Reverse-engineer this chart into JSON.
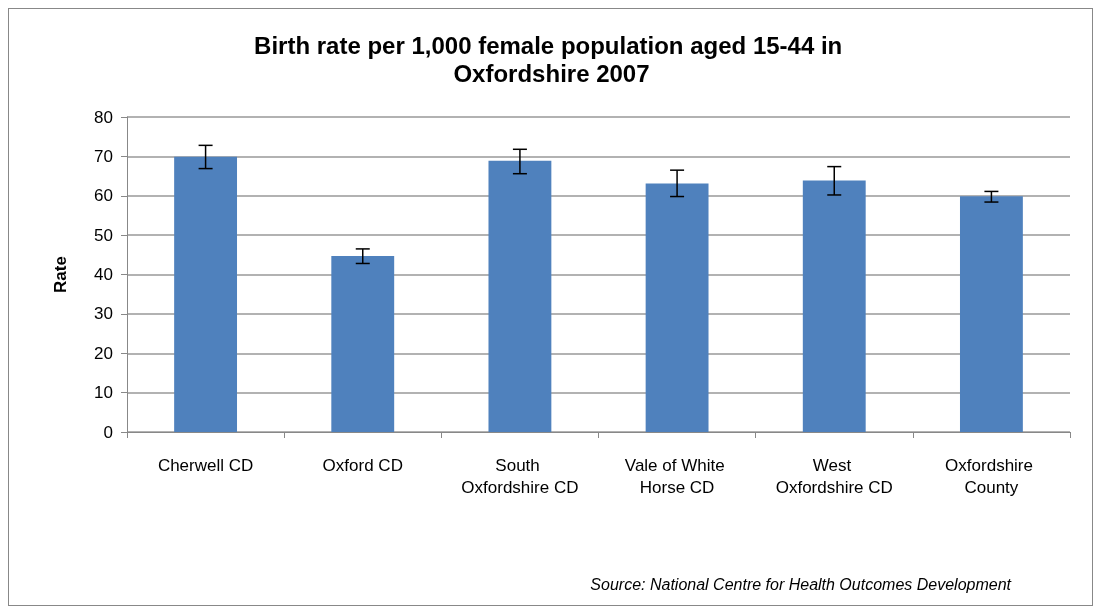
{
  "chart_data": {
    "type": "bar",
    "title": "Birth rate per 1,000 female population aged 15-44 in Oxfordshire 2007",
    "ylabel": "Rate",
    "categories": [
      "Cherwell CD",
      "Oxford CD",
      "South Oxfordshire CD",
      "Vale of White Horse CD",
      "West Oxfordshire CD",
      "Oxfordshire County"
    ],
    "values": [
      69.9,
      44.7,
      68.9,
      63.1,
      63.9,
      59.9
    ],
    "errors": [
      [
        66.9,
        72.8
      ],
      [
        42.8,
        46.5
      ],
      [
        65.6,
        71.8
      ],
      [
        59.8,
        66.5
      ],
      [
        60.2,
        67.4
      ],
      [
        58.4,
        61.1
      ]
    ],
    "color": "#4f81bd",
    "ylim": [
      0,
      80
    ],
    "yticks": [
      0,
      10,
      20,
      30,
      40,
      50,
      60,
      70,
      80
    ],
    "grid": "y",
    "annotations": [
      "Source: National Centre for Health Outcomes Development"
    ]
  }
}
